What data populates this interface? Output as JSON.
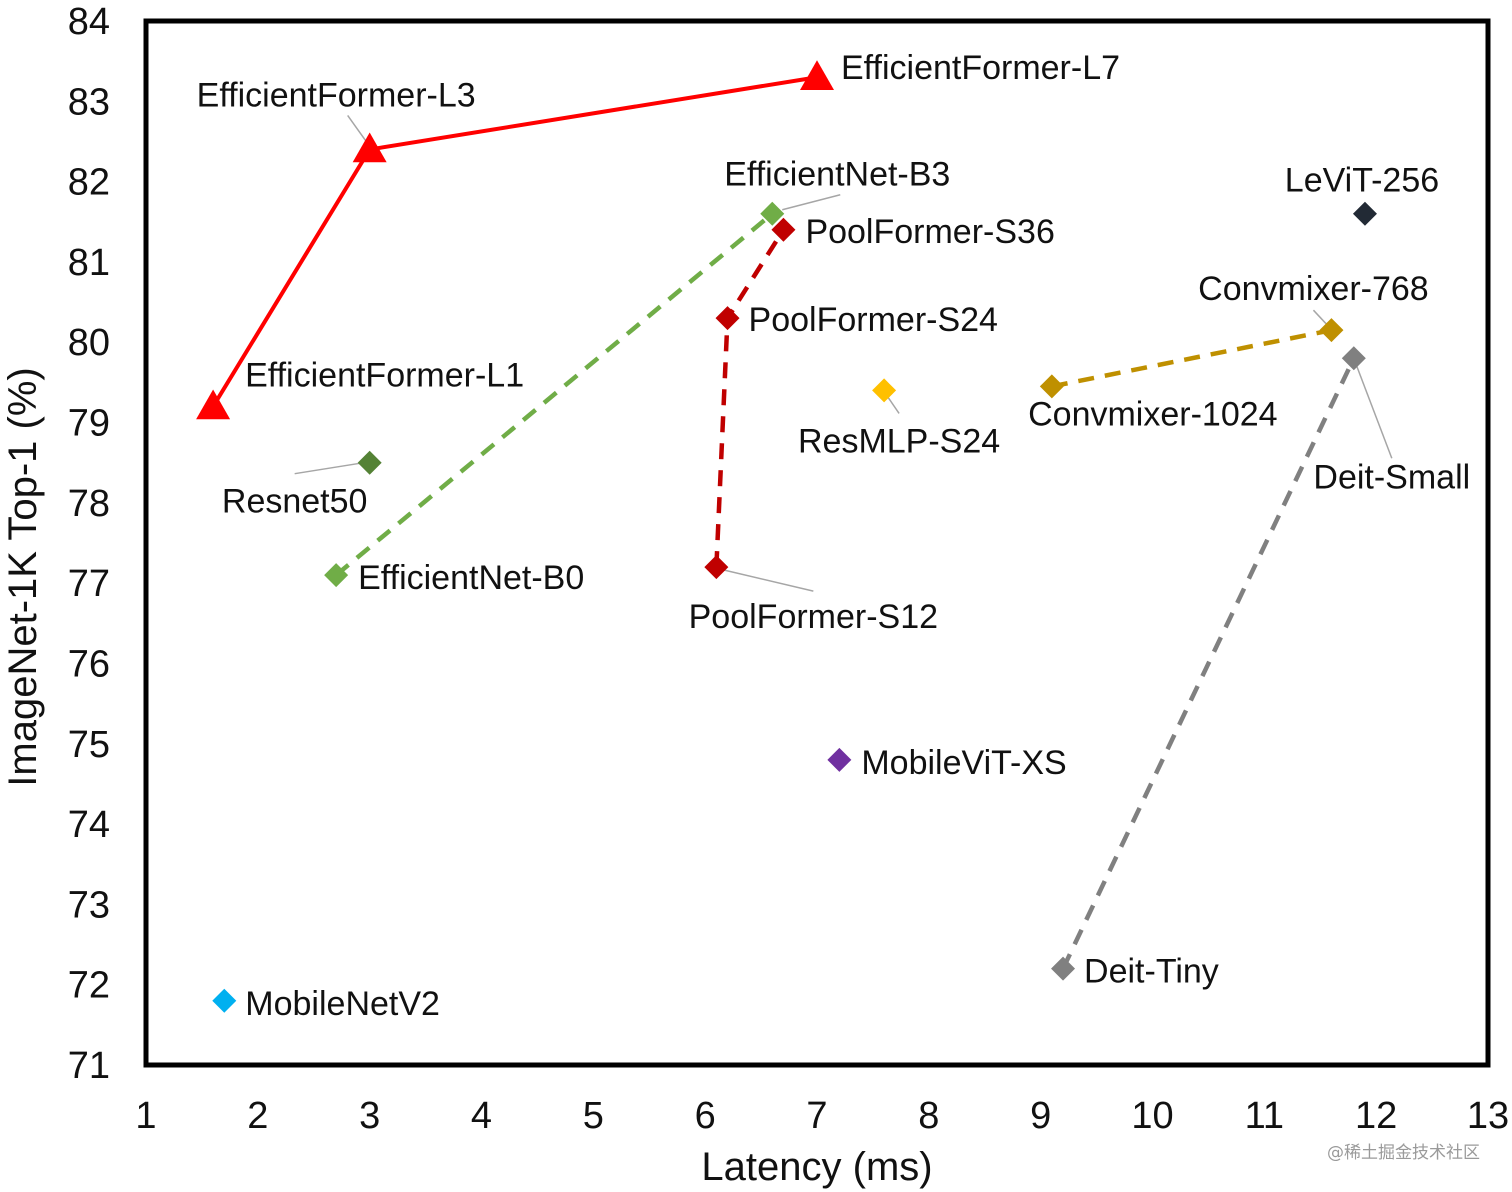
{
  "chart_data": {
    "type": "scatter",
    "xlabel": "Latency (ms)",
    "ylabel": "ImageNet-1K Top-1 (%)",
    "xlim": [
      1,
      13
    ],
    "ylim": [
      71,
      84
    ],
    "xticks": [
      1,
      2,
      3,
      4,
      5,
      6,
      7,
      8,
      9,
      10,
      11,
      12,
      13
    ],
    "yticks": [
      71,
      72,
      73,
      74,
      75,
      76,
      77,
      78,
      79,
      80,
      81,
      82,
      83,
      84
    ],
    "grid": false,
    "series": [
      {
        "color": "#ff0000",
        "marker": "triangle",
        "line": "solid",
        "points": [
          {
            "label": "EfficientFormer-L1",
            "x": 1.6,
            "y": 79.2
          },
          {
            "label": "EfficientFormer-L3",
            "x": 3.0,
            "y": 82.4
          },
          {
            "label": "EfficientFormer-L7",
            "x": 7.0,
            "y": 83.3
          }
        ]
      },
      {
        "color": "#70ad47",
        "marker": "diamond",
        "line": "dashed",
        "points": [
          {
            "label": "EfficientNet-B0",
            "x": 2.7,
            "y": 77.1
          },
          {
            "label": "EfficientNet-B3",
            "x": 6.6,
            "y": 81.6
          }
        ]
      },
      {
        "color": "#c00000",
        "marker": "diamond",
        "line": "dashed",
        "points": [
          {
            "label": "PoolFormer-S12",
            "x": 6.1,
            "y": 77.2
          },
          {
            "label": "PoolFormer-S24",
            "x": 6.2,
            "y": 80.3
          },
          {
            "label": "PoolFormer-S36",
            "x": 6.7,
            "y": 81.4
          }
        ]
      },
      {
        "color": "#bf9000",
        "marker": "diamond",
        "line": "dashed",
        "points": [
          {
            "label": "Convmixer-1024",
            "x": 9.1,
            "y": 79.45
          },
          {
            "label": "Convmixer-768",
            "x": 11.6,
            "y": 80.15
          }
        ]
      },
      {
        "color": "#808080",
        "marker": "diamond",
        "line": "dashed",
        "points": [
          {
            "label": "Deit-Tiny",
            "x": 9.2,
            "y": 72.2
          },
          {
            "label": "Deit-Small",
            "x": 11.8,
            "y": 79.8
          }
        ]
      },
      {
        "color": "#548235",
        "marker": "diamond",
        "line": "none",
        "points": [
          {
            "label": "Resnet50",
            "x": 3.0,
            "y": 78.5
          }
        ]
      },
      {
        "color": "#ffc000",
        "marker": "diamond",
        "line": "none",
        "points": [
          {
            "label": "ResMLP-S24",
            "x": 7.6,
            "y": 79.4
          }
        ]
      },
      {
        "color": "#222a35",
        "marker": "diamond",
        "line": "none",
        "points": [
          {
            "label": "LeViT-256",
            "x": 11.9,
            "y": 81.6
          }
        ]
      },
      {
        "color": "#7030a0",
        "marker": "diamond",
        "line": "none",
        "points": [
          {
            "label": "MobileViT-XS",
            "x": 7.2,
            "y": 74.8
          }
        ]
      },
      {
        "color": "#00b0f0",
        "marker": "diamond",
        "line": "none",
        "points": [
          {
            "label": "MobileNetV2",
            "x": 1.7,
            "y": 71.8
          }
        ]
      }
    ]
  },
  "watermark": "@稀土掘金技术社区"
}
